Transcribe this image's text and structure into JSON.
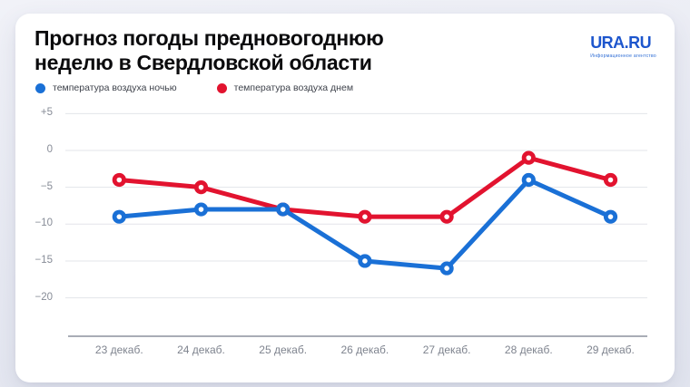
{
  "header": {
    "title_lines": [
      "Прогноз погоды предновогоднюю",
      "неделю в Свердловской области"
    ],
    "logo": {
      "text": "URA.RU",
      "tagline": "Информационное агентство",
      "color": "#1d56cd"
    }
  },
  "legend": {
    "items": [
      {
        "label": "температура воздуха ночью",
        "color": "#1a70d6"
      },
      {
        "label": "температура воздуха днем",
        "color": "#e2132f"
      }
    ]
  },
  "chart_data": {
    "type": "line",
    "title": "Прогноз погоды предновогоднюю неделю в Свердловской области",
    "categories": [
      "23 декаб.",
      "24 декаб.",
      "25 декаб.",
      "26 декаб.",
      "27 декаб.",
      "28 декаб.",
      "29 декаб."
    ],
    "series": [
      {
        "name": "температура воздуха днем",
        "color": "#e2132f",
        "values": [
          -4,
          -5,
          -8,
          -9,
          -9,
          -1,
          -4
        ]
      },
      {
        "name": "температура воздуха ночью",
        "color": "#1a70d6",
        "values": [
          -9,
          -8,
          -8,
          -15,
          -16,
          -4,
          -9
        ]
      }
    ],
    "xlabel": "",
    "ylabel": "",
    "ylim": [
      -25,
      7
    ],
    "grid": true,
    "legend_position": "top-left",
    "y_ticks": [
      {
        "label": "+5",
        "value": 5
      },
      {
        "label": "0",
        "value": 0
      },
      {
        "label": "−5",
        "value": -5
      },
      {
        "label": "−10",
        "value": -10
      },
      {
        "label": "−15",
        "value": -15
      },
      {
        "label": "−20",
        "value": -20
      }
    ],
    "colors": {
      "gridline": "#e3e4ea",
      "axis_line": "#a9adb6"
    }
  }
}
